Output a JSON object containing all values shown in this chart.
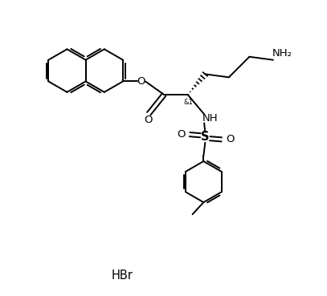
{
  "background_color": "#ffffff",
  "line_color": "#000000",
  "line_width": 1.4,
  "font_size": 8.5,
  "figsize": [
    4.07,
    3.69
  ],
  "dpi": 100,
  "xlim": [
    0,
    10.2
  ],
  "ylim": [
    0,
    9.2
  ]
}
